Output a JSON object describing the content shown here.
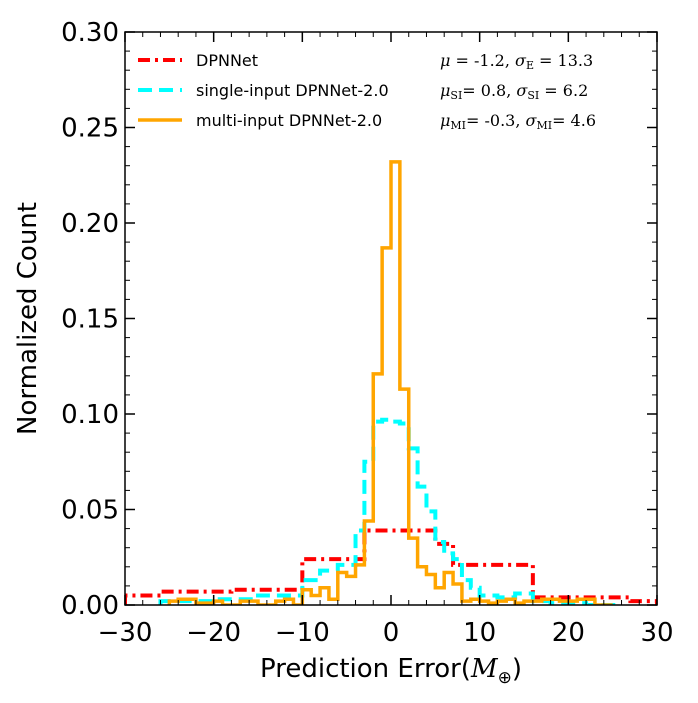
{
  "chart_data": {
    "type": "histogram-step",
    "xlabel": "Prediction Error(M⊕)",
    "xlabel_text": "Prediction Error(",
    "xlabel_unit": "M",
    "xlabel_unit_sub": "⊕",
    "xlabel_close": ")",
    "ylabel": "Normalized Count",
    "xlim": [
      -30,
      30
    ],
    "ylim": [
      0.0,
      0.3
    ],
    "xticks": [
      -30,
      -20,
      -10,
      0,
      10,
      20,
      30
    ],
    "xtick_labels": [
      "−30",
      "−20",
      "−10",
      "0",
      "10",
      "20",
      "30"
    ],
    "yticks": [
      0.0,
      0.05,
      0.1,
      0.15,
      0.2,
      0.25,
      0.3
    ],
    "ytick_labels": [
      "0.00",
      "0.05",
      "0.10",
      "0.15",
      "0.20",
      "0.25",
      "0.30"
    ],
    "legend_position": "top-left",
    "series": [
      {
        "name": "DPNNet",
        "stats": "μ  = -1.2, σ_E = 13.3",
        "color": "#ff0000",
        "style": "dashdot",
        "edges": [
          -30,
          -26,
          -18,
          -10,
          -3,
          5,
          7,
          16,
          27,
          30
        ],
        "values": [
          0.005,
          0.007,
          0.008,
          0.024,
          0.039,
          0.032,
          0.021,
          0.004,
          0.002
        ]
      },
      {
        "name": "single-input DPNNet-2.0",
        "stats": "μ_SI=  0.8, σ_SI = 6.2",
        "color": "#00ffff",
        "style": "dashed",
        "edges": [
          -26,
          -20,
          -15,
          -10,
          -8,
          -6,
          -4,
          -3,
          -2,
          -1,
          0,
          1,
          2,
          3,
          4,
          5,
          6,
          7,
          8,
          9,
          10,
          12,
          14,
          16,
          18,
          22,
          26
        ],
        "values": [
          0.002,
          0.003,
          0.005,
          0.013,
          0.018,
          0.021,
          0.039,
          0.075,
          0.096,
          0.097,
          0.096,
          0.095,
          0.082,
          0.062,
          0.049,
          0.033,
          0.027,
          0.024,
          0.013,
          0.009,
          0.005,
          0.004,
          0.006,
          0.002,
          0.001,
          0.0
        ]
      },
      {
        "name": "multi-input DPNNet-2.0",
        "stats": "μ_MI= -0.3, σ_MI= 4.6",
        "color": "#ffa500",
        "style": "solid",
        "edges": [
          -25,
          -24,
          -22,
          -20,
          -19,
          -17,
          -15,
          -13,
          -12,
          -11,
          -10,
          -9,
          -8,
          -7,
          -6,
          -5,
          -4,
          -3,
          -2,
          -1,
          0,
          1,
          2,
          3,
          4,
          5,
          6,
          7,
          8,
          9,
          10,
          11,
          12,
          13,
          14,
          15,
          17,
          19,
          21,
          23,
          25
        ],
        "values": [
          0.002,
          0.003,
          0.001,
          0.002,
          0.0,
          0.002,
          0.0,
          0.002,
          0.003,
          0.0,
          0.008,
          0.005,
          0.009,
          0.003,
          0.017,
          0.015,
          0.021,
          0.044,
          0.121,
          0.187,
          0.232,
          0.113,
          0.035,
          0.02,
          0.016,
          0.009,
          0.017,
          0.011,
          0.002,
          0.003,
          0.002,
          0.001,
          0.002,
          0.003,
          0.001,
          0.002,
          0.003,
          0.002,
          0.003,
          0.0
        ]
      }
    ]
  }
}
